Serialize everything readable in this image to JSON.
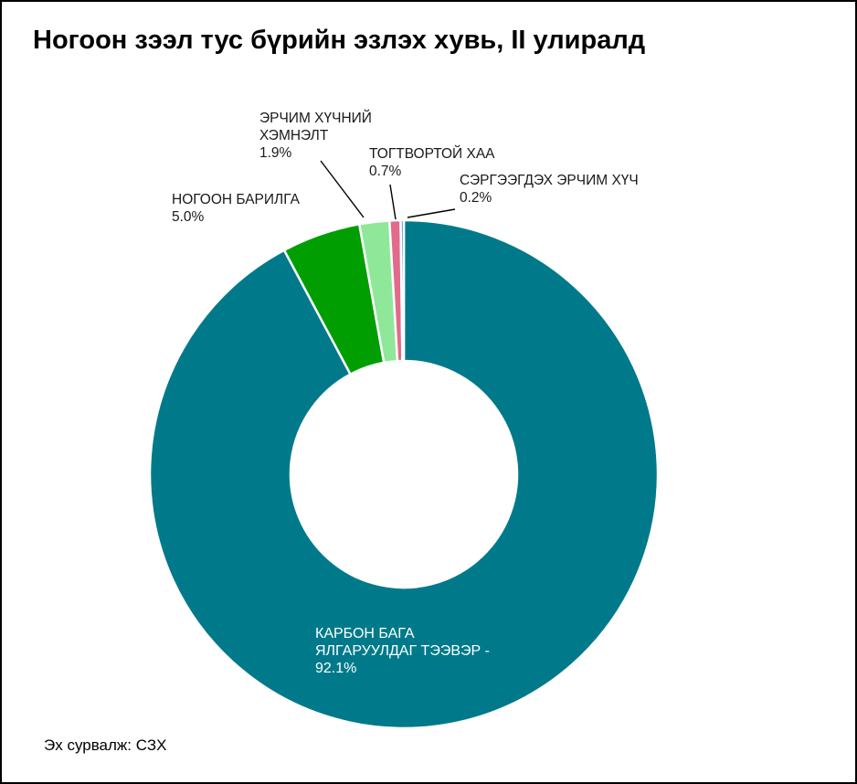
{
  "title": "Ногоон зээл тус бүрийн эзлэх хувь, II улиралд",
  "source": "Эх сурвалж: СЗХ",
  "chart_data": {
    "type": "pie",
    "style": "donut",
    "title": "Ногоон зээл тус бүрийн эзлэх хувь, II улиралд",
    "unit": "%",
    "slices": [
      {
        "label_lines": [
          "КАРБОН БАГА",
          "ЯЛГАРУУЛДАГ ТЭЭВЭР -"
        ],
        "value": 92.1,
        "value_text": "92.1%",
        "color": "#007a8a"
      },
      {
        "label_lines": [
          "НОГООН БАРИЛГА"
        ],
        "value": 5.0,
        "value_text": "5.0%",
        "color": "#009e00"
      },
      {
        "label_lines": [
          "ЭРЧИМ ХҮЧНИЙ",
          "ХЭМНЭЛТ"
        ],
        "value": 1.9,
        "value_text": "1.9%",
        "color": "#8fe89a"
      },
      {
        "label_lines": [
          "ТОГТВОРТОЙ ХАА"
        ],
        "value": 0.7,
        "value_text": "0.7%",
        "color": "#e26a8a"
      },
      {
        "label_lines": [
          "СЭРГЭЭГДЭХ ЭРЧИМ ХҮЧ"
        ],
        "value": 0.2,
        "value_text": "0.2%",
        "color": "#5a8fd6"
      }
    ]
  }
}
